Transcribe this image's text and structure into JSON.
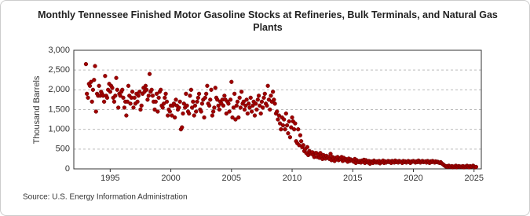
{
  "chart_data": {
    "type": "scatter",
    "title": "Monthly Tennessee Finished Motor Gasoline Stocks at Refineries, Bulk Terminals, and Natural Gas Plants",
    "y_label": "Thousand Barrels",
    "source": "Source: U.S. Energy Information Administration",
    "color": "#a00000",
    "grid": true,
    "xlim": [
      1992,
      2025.6
    ],
    "xticks": [
      1995,
      2000,
      2005,
      2010,
      2015,
      2020,
      2025
    ],
    "ylim": [
      0,
      3000
    ],
    "yticks": [
      0,
      {
        "value": 500,
        "label": "500"
      },
      {
        "value": 1000,
        "label": "1,000"
      },
      {
        "value": 1500,
        "label": "1,500"
      },
      {
        "value": 2000,
        "label": "2,000"
      },
      {
        "value": 2500,
        "label": "2,500"
      },
      {
        "value": 3000,
        "label": "3,000"
      }
    ],
    "x": [
      1993,
      1993.08,
      1993.17,
      1993.25,
      1993.33,
      1993.42,
      1993.5,
      1993.58,
      1993.67,
      1993.75,
      1993.83,
      1993.92,
      1994,
      1994.08,
      1994.17,
      1994.25,
      1994.33,
      1994.42,
      1994.5,
      1994.58,
      1994.67,
      1994.75,
      1994.83,
      1994.92,
      1995,
      1995.08,
      1995.17,
      1995.25,
      1995.33,
      1995.42,
      1995.5,
      1995.58,
      1995.67,
      1995.75,
      1995.83,
      1995.92,
      1996,
      1996.08,
      1996.17,
      1996.25,
      1996.33,
      1996.42,
      1996.5,
      1996.58,
      1996.67,
      1996.75,
      1996.83,
      1996.92,
      1997,
      1997.08,
      1997.17,
      1997.25,
      1997.33,
      1997.42,
      1997.5,
      1997.58,
      1997.67,
      1997.75,
      1997.83,
      1997.92,
      1998,
      1998.08,
      1998.17,
      1998.25,
      1998.33,
      1998.42,
      1998.5,
      1998.58,
      1998.67,
      1998.75,
      1998.83,
      1998.92,
      1999,
      1999.08,
      1999.17,
      1999.25,
      1999.33,
      1999.42,
      1999.5,
      1999.58,
      1999.67,
      1999.75,
      1999.83,
      1999.92,
      2000,
      2000.08,
      2000.17,
      2000.25,
      2000.33,
      2000.42,
      2000.5,
      2000.58,
      2000.67,
      2000.75,
      2000.83,
      2000.92,
      2001,
      2001.08,
      2001.17,
      2001.25,
      2001.33,
      2001.42,
      2001.5,
      2001.58,
      2001.67,
      2001.75,
      2001.83,
      2001.92,
      2002,
      2002.08,
      2002.17,
      2002.25,
      2002.33,
      2002.42,
      2002.5,
      2002.58,
      2002.67,
      2002.75,
      2002.83,
      2002.92,
      2003,
      2003.08,
      2003.17,
      2003.25,
      2003.33,
      2003.42,
      2003.5,
      2003.58,
      2003.67,
      2003.75,
      2003.83,
      2003.92,
      2004,
      2004.08,
      2004.17,
      2004.25,
      2004.33,
      2004.42,
      2004.5,
      2004.58,
      2004.67,
      2004.75,
      2004.83,
      2004.92,
      2005,
      2005.08,
      2005.17,
      2005.25,
      2005.33,
      2005.42,
      2005.5,
      2005.58,
      2005.67,
      2005.75,
      2005.83,
      2005.92,
      2006,
      2006.08,
      2006.17,
      2006.25,
      2006.33,
      2006.42,
      2006.5,
      2006.58,
      2006.67,
      2006.75,
      2006.83,
      2006.92,
      2007,
      2007.08,
      2007.17,
      2007.25,
      2007.33,
      2007.42,
      2007.5,
      2007.58,
      2007.67,
      2007.75,
      2007.83,
      2007.92,
      2008,
      2008.08,
      2008.17,
      2008.25,
      2008.33,
      2008.42,
      2008.5,
      2008.58,
      2008.67,
      2008.75,
      2008.83,
      2008.92,
      2009,
      2009.08,
      2009.17,
      2009.25,
      2009.33,
      2009.42,
      2009.5,
      2009.58,
      2009.67,
      2009.75,
      2009.83,
      2009.92,
      2010,
      2010.08,
      2010.17,
      2010.25,
      2010.33,
      2010.42,
      2010.5,
      2010.58,
      2010.67,
      2010.75,
      2010.83,
      2010.92,
      2011,
      2011.08,
      2011.17,
      2011.25,
      2011.33,
      2011.42,
      2011.5,
      2011.58,
      2011.67,
      2011.75,
      2011.83,
      2011.92,
      2012,
      2012.08,
      2012.17,
      2012.25,
      2012.33,
      2012.42,
      2012.5,
      2012.58,
      2012.67,
      2012.75,
      2012.83,
      2012.92,
      2013,
      2013.08,
      2013.17,
      2013.25,
      2013.33,
      2013.42,
      2013.5,
      2013.58,
      2013.67,
      2013.75,
      2013.83,
      2013.92,
      2014,
      2014.08,
      2014.17,
      2014.25,
      2014.33,
      2014.42,
      2014.5,
      2014.58,
      2014.67,
      2014.75,
      2014.83,
      2014.92,
      2015,
      2015.08,
      2015.17,
      2015.25,
      2015.33,
      2015.42,
      2015.5,
      2015.58,
      2015.67,
      2015.75,
      2015.83,
      2015.92,
      2016,
      2016.08,
      2016.17,
      2016.25,
      2016.33,
      2016.42,
      2016.5,
      2016.58,
      2016.67,
      2016.75,
      2016.83,
      2016.92,
      2017,
      2017.08,
      2017.17,
      2017.25,
      2017.33,
      2017.42,
      2017.5,
      2017.58,
      2017.67,
      2017.75,
      2017.83,
      2017.92,
      2018,
      2018.08,
      2018.17,
      2018.25,
      2018.33,
      2018.42,
      2018.5,
      2018.58,
      2018.67,
      2018.75,
      2018.83,
      2018.92,
      2019,
      2019.08,
      2019.17,
      2019.25,
      2019.33,
      2019.42,
      2019.5,
      2019.58,
      2019.67,
      2019.75,
      2019.83,
      2019.92,
      2020,
      2020.08,
      2020.17,
      2020.25,
      2020.33,
      2020.42,
      2020.5,
      2020.58,
      2020.67,
      2020.75,
      2020.83,
      2020.92,
      2021,
      2021.08,
      2021.17,
      2021.25,
      2021.33,
      2021.42,
      2021.5,
      2021.58,
      2021.67,
      2021.75,
      2021.83,
      2021.92,
      2022,
      2022.08,
      2022.17,
      2022.25,
      2022.33,
      2022.42,
      2022.5,
      2022.58,
      2022.67,
      2022.75,
      2022.83,
      2022.92,
      2023,
      2023.08,
      2023.17,
      2023.25,
      2023.33,
      2023.42,
      2023.5,
      2023.58,
      2023.67,
      2023.75,
      2023.83,
      2023.92,
      2024,
      2024.08,
      2024.17,
      2024.25,
      2024.33,
      2024.42,
      2024.5,
      2024.58,
      2024.67,
      2024.75,
      2024.83,
      2024.92,
      2025,
      2025.08,
      2025.17
    ],
    "values": [
      2650,
      1900,
      1800,
      2150,
      2100,
      2200,
      1700,
      2000,
      2250,
      2600,
      1450,
      1900,
      1850,
      2100,
      1850,
      1950,
      1900,
      1850,
      1700,
      2350,
      1850,
      1800,
      2000,
      2150,
      1950,
      2100,
      2050,
      1800,
      1700,
      1850,
      2300,
      2000,
      1550,
      1900,
      1850,
      1950,
      2000,
      1800,
      1550,
      1700,
      1350,
      1700,
      2100,
      1850,
      1650,
      1800,
      1950,
      1550,
      1800,
      1650,
      1900,
      1700,
      1850,
      1950,
      1500,
      1600,
      1900,
      2050,
      1950,
      2100,
      2000,
      1750,
      1850,
      2400,
      1950,
      2000,
      1850,
      1700,
      1500,
      1700,
      1900,
      1450,
      1800,
      1950,
      2000,
      1600,
      1550,
      1650,
      1800,
      1900,
      1700,
      1350,
      1500,
      1450,
      1600,
      1350,
      1600,
      1650,
      1300,
      1750,
      1600,
      1500,
      1550,
      1700,
      1000,
      1050,
      1400,
      1650,
      1550,
      1900,
      1600,
      1450,
      1400,
      1850,
      2000,
      1550,
      1700,
      1350,
      1600,
      1450,
      1700,
      1800,
      1900,
      1500,
      1450,
      1650,
      1750,
      1300,
      1800,
      1900,
      2100,
      1650,
      1600,
      1750,
      2000,
      1350,
      1450,
      1550,
      2050,
      1800,
      1750,
      1600,
      1500,
      1700,
      1650,
      1750,
      1600,
      1850,
      1750,
      1400,
      1700,
      1650,
      1450,
      1750,
      2200,
      1300,
      1550,
      1900,
      1250,
      1600,
      1700,
      1300,
      1800,
      1550,
      1950,
      1650,
      1700,
      1500,
      1600,
      1750,
      1400,
      1650,
      1550,
      1800,
      1450,
      1600,
      1700,
      1350,
      1650,
      1500,
      1750,
      1850,
      1600,
      1400,
      1700,
      1550,
      1800,
      1900,
      1650,
      1600,
      2100,
      1750,
      1500,
      1850,
      1700,
      1950,
      1750,
      1650,
      1400,
      1450,
      1250,
      1350,
      1150,
      1000,
      1300,
      1100,
      1250,
      1000,
      1400,
      1100,
      900,
      1200,
      800,
      1050,
      1300,
      1200,
      1000,
      1150,
      700,
      650,
      1000,
      600,
      850,
      700,
      550,
      600,
      450,
      500,
      400,
      550,
      350,
      450,
      400,
      380,
      420,
      350,
      300,
      400,
      400,
      300,
      350,
      280,
      400,
      320,
      250,
      350,
      300,
      260,
      330,
      280,
      300,
      250,
      380,
      220,
      300,
      260,
      200,
      280,
      240,
      300,
      220,
      260,
      250,
      300,
      200,
      280,
      220,
      250,
      230,
      180,
      260,
      200,
      240,
      220,
      200,
      180,
      250,
      150,
      220,
      190,
      170,
      200,
      160,
      210,
      180,
      230,
      150,
      220,
      180,
      160,
      200,
      130,
      190,
      170,
      150,
      210,
      180,
      160,
      190,
      160,
      200,
      140,
      180,
      170,
      210,
      150,
      190,
      160,
      180,
      200,
      170,
      190,
      150,
      200,
      180,
      160,
      210,
      170,
      190,
      160,
      200,
      180,
      180,
      150,
      200,
      170,
      190,
      160,
      180,
      200,
      170,
      150,
      190,
      180,
      200,
      180,
      160,
      190,
      170,
      210,
      180,
      160,
      190,
      200,
      170,
      180,
      190,
      160,
      200,
      180,
      150,
      190,
      170,
      200,
      180,
      160,
      190,
      170,
      180,
      160,
      150,
      170,
      140,
      120,
      100,
      80,
      60,
      70,
      50,
      80,
      60,
      50,
      70,
      40,
      60,
      50,
      80,
      40,
      60,
      70,
      50,
      60,
      50,
      70,
      40,
      60,
      50,
      80,
      60,
      40,
      70,
      50,
      60,
      80,
      60,
      40,
      50
    ]
  }
}
